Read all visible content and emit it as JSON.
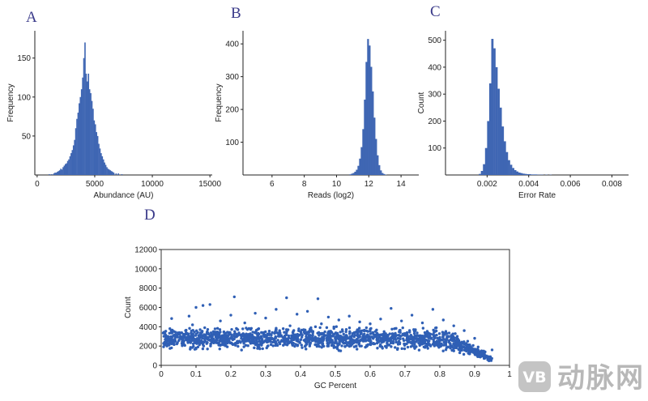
{
  "colors": {
    "bar": "#3f66b3",
    "point": "#2f5fb5",
    "axis": "#222222",
    "letter": "#3b3b8a",
    "watermark": "#b8b8b8"
  },
  "watermark": {
    "text": "动脉网",
    "icon": "vb-logo-icon",
    "logo_text": "VB"
  },
  "chart_data": [
    {
      "panel": "A",
      "type": "bar",
      "title": "",
      "xlabel": "Abundance (AU)",
      "ylabel": "Frequency",
      "xlim": [
        -200,
        15200
      ],
      "ylim": [
        0,
        185
      ],
      "xticks": [
        0,
        5000,
        10000,
        15000
      ],
      "yticks": [
        50,
        100,
        150
      ],
      "bin_width": 100,
      "bins": [
        [
          1000,
          1
        ],
        [
          1200,
          1
        ],
        [
          1400,
          2
        ],
        [
          1500,
          3
        ],
        [
          1600,
          3
        ],
        [
          1700,
          4
        ],
        [
          1800,
          5
        ],
        [
          1900,
          6
        ],
        [
          2000,
          8
        ],
        [
          2100,
          7
        ],
        [
          2200,
          10
        ],
        [
          2300,
          12
        ],
        [
          2400,
          14
        ],
        [
          2500,
          15
        ],
        [
          2600,
          18
        ],
        [
          2700,
          20
        ],
        [
          2800,
          24
        ],
        [
          2900,
          28
        ],
        [
          3000,
          32
        ],
        [
          3100,
          38
        ],
        [
          3200,
          45
        ],
        [
          3300,
          60
        ],
        [
          3400,
          72
        ],
        [
          3500,
          80
        ],
        [
          3600,
          92
        ],
        [
          3700,
          100
        ],
        [
          3800,
          110
        ],
        [
          3900,
          125
        ],
        [
          4000,
          150
        ],
        [
          4100,
          170
        ],
        [
          4200,
          130
        ],
        [
          4300,
          120
        ],
        [
          4400,
          130
        ],
        [
          4500,
          110
        ],
        [
          4600,
          105
        ],
        [
          4700,
          95
        ],
        [
          4800,
          85
        ],
        [
          4900,
          70
        ],
        [
          5000,
          65
        ],
        [
          5100,
          55
        ],
        [
          5200,
          50
        ],
        [
          5300,
          40
        ],
        [
          5400,
          34
        ],
        [
          5500,
          28
        ],
        [
          5600,
          24
        ],
        [
          5700,
          20
        ],
        [
          5800,
          16
        ],
        [
          5900,
          13
        ],
        [
          6000,
          10
        ],
        [
          6100,
          8
        ],
        [
          6200,
          7
        ],
        [
          6300,
          6
        ],
        [
          6400,
          5
        ],
        [
          6500,
          4
        ],
        [
          6600,
          3
        ],
        [
          6800,
          2
        ],
        [
          7000,
          2
        ],
        [
          7300,
          1
        ]
      ]
    },
    {
      "panel": "B",
      "type": "bar",
      "title": "",
      "xlabel": "Reads (log2)",
      "ylabel": "Frequency",
      "xlim": [
        4.2,
        15.1
      ],
      "ylim": [
        0,
        440
      ],
      "xticks": [
        6,
        8,
        10,
        12,
        14
      ],
      "yticks": [
        100,
        200,
        300,
        400
      ],
      "bin_width": 0.1,
      "bins": [
        [
          10.8,
          2
        ],
        [
          10.9,
          4
        ],
        [
          11.0,
          6
        ],
        [
          11.1,
          10
        ],
        [
          11.2,
          16
        ],
        [
          11.3,
          28
        ],
        [
          11.4,
          50
        ],
        [
          11.5,
          85
        ],
        [
          11.6,
          140
        ],
        [
          11.7,
          230
        ],
        [
          11.8,
          345
        ],
        [
          11.9,
          415
        ],
        [
          12.0,
          395
        ],
        [
          12.1,
          330
        ],
        [
          12.2,
          255
        ],
        [
          12.3,
          175
        ],
        [
          12.4,
          110
        ],
        [
          12.5,
          60
        ],
        [
          12.6,
          30
        ],
        [
          12.7,
          14
        ],
        [
          12.8,
          6
        ],
        [
          12.9,
          3
        ],
        [
          13.0,
          1
        ]
      ]
    },
    {
      "panel": "C",
      "type": "bar",
      "title": "",
      "xlabel": "Error Rate",
      "ylabel": "Count",
      "xlim": [
        0,
        0.0088
      ],
      "ylim": [
        0,
        535
      ],
      "xticks": [
        0.002,
        0.004,
        0.006,
        0.008
      ],
      "xtick_labels": [
        "0.002",
        "0.004",
        "0.006",
        "0.008"
      ],
      "yticks": [
        100,
        200,
        300,
        400,
        500
      ],
      "bin_width": 0.0001,
      "bins": [
        [
          0.0016,
          4
        ],
        [
          0.0017,
          15
        ],
        [
          0.0018,
          40
        ],
        [
          0.0019,
          100
        ],
        [
          0.002,
          200
        ],
        [
          0.0021,
          340
        ],
        [
          0.0022,
          505
        ],
        [
          0.0023,
          470
        ],
        [
          0.0024,
          400
        ],
        [
          0.0025,
          320
        ],
        [
          0.0026,
          250
        ],
        [
          0.0027,
          180
        ],
        [
          0.0028,
          125
        ],
        [
          0.0029,
          85
        ],
        [
          0.003,
          55
        ],
        [
          0.0031,
          38
        ],
        [
          0.0032,
          26
        ],
        [
          0.0033,
          18
        ],
        [
          0.0034,
          13
        ],
        [
          0.0035,
          9
        ],
        [
          0.0036,
          7
        ],
        [
          0.0037,
          5
        ],
        [
          0.0038,
          4
        ],
        [
          0.0039,
          3
        ],
        [
          0.004,
          3
        ],
        [
          0.0041,
          2
        ],
        [
          0.0042,
          2
        ],
        [
          0.0043,
          2
        ],
        [
          0.0044,
          1
        ],
        [
          0.0045,
          1
        ],
        [
          0.0046,
          1
        ],
        [
          0.0048,
          1
        ],
        [
          0.005,
          1
        ]
      ]
    },
    {
      "panel": "D",
      "type": "scatter",
      "title": "",
      "xlabel": "GC Percent",
      "ylabel": "Count",
      "xlim": [
        0,
        1
      ],
      "ylim": [
        0,
        12000
      ],
      "xticks": [
        0,
        0.1,
        0.2,
        0.3,
        0.4,
        0.5,
        0.6,
        0.7,
        0.8,
        0.9,
        1
      ],
      "xtick_labels": [
        "0",
        "0.1",
        "0.2",
        "0.3",
        "0.4",
        "0.5",
        "0.6",
        "0.7",
        "0.8",
        "0.9",
        "1"
      ],
      "yticks": [
        0,
        2000,
        4000,
        6000,
        8000,
        10000,
        12000
      ],
      "points": [
        [
          0.01,
          2400
        ],
        [
          0.02,
          2100
        ],
        [
          0.025,
          3800
        ],
        [
          0.03,
          4850
        ],
        [
          0.035,
          3100
        ],
        [
          0.04,
          2600
        ],
        [
          0.05,
          3300
        ],
        [
          0.06,
          2800
        ],
        [
          0.07,
          3600
        ],
        [
          0.08,
          5100
        ],
        [
          0.09,
          4200
        ],
        [
          0.095,
          2500
        ],
        [
          0.1,
          6000
        ],
        [
          0.105,
          3400
        ],
        [
          0.11,
          2200
        ],
        [
          0.12,
          6200
        ],
        [
          0.125,
          3900
        ],
        [
          0.13,
          2900
        ],
        [
          0.14,
          6300
        ],
        [
          0.15,
          3500
        ],
        [
          0.16,
          2600
        ],
        [
          0.17,
          4600
        ],
        [
          0.18,
          3100
        ],
        [
          0.19,
          2300
        ],
        [
          0.2,
          5200
        ],
        [
          0.21,
          7100
        ],
        [
          0.22,
          3700
        ],
        [
          0.23,
          2800
        ],
        [
          0.24,
          4400
        ],
        [
          0.25,
          3200
        ],
        [
          0.26,
          2500
        ],
        [
          0.27,
          5400
        ],
        [
          0.28,
          3800
        ],
        [
          0.29,
          2700
        ],
        [
          0.3,
          4900
        ],
        [
          0.31,
          3300
        ],
        [
          0.32,
          2400
        ],
        [
          0.33,
          5800
        ],
        [
          0.34,
          3600
        ],
        [
          0.35,
          2900
        ],
        [
          0.36,
          7000
        ],
        [
          0.37,
          4100
        ],
        [
          0.38,
          3000
        ],
        [
          0.39,
          5300
        ],
        [
          0.4,
          3500
        ],
        [
          0.41,
          2600
        ],
        [
          0.42,
          5600
        ],
        [
          0.43,
          3900
        ],
        [
          0.44,
          2800
        ],
        [
          0.45,
          6900
        ],
        [
          0.46,
          4300
        ],
        [
          0.47,
          3100
        ],
        [
          0.48,
          5000
        ],
        [
          0.49,
          3400
        ],
        [
          0.5,
          2500
        ],
        [
          0.51,
          4700
        ],
        [
          0.52,
          3700
        ],
        [
          0.53,
          2700
        ],
        [
          0.54,
          5100
        ],
        [
          0.55,
          3300
        ],
        [
          0.56,
          2400
        ],
        [
          0.57,
          4500
        ],
        [
          0.58,
          3600
        ],
        [
          0.59,
          2600
        ],
        [
          0.6,
          4300
        ],
        [
          0.61,
          3200
        ],
        [
          0.62,
          2300
        ],
        [
          0.63,
          4800
        ],
        [
          0.64,
          3500
        ],
        [
          0.65,
          2500
        ],
        [
          0.66,
          5900
        ],
        [
          0.67,
          3800
        ],
        [
          0.68,
          2800
        ],
        [
          0.69,
          4600
        ],
        [
          0.7,
          3300
        ],
        [
          0.71,
          2400
        ],
        [
          0.72,
          5200
        ],
        [
          0.73,
          3700
        ],
        [
          0.74,
          2700
        ],
        [
          0.75,
          4400
        ],
        [
          0.76,
          3100
        ],
        [
          0.77,
          2200
        ],
        [
          0.78,
          5800
        ],
        [
          0.79,
          3900
        ],
        [
          0.8,
          2900
        ],
        [
          0.81,
          4700
        ],
        [
          0.82,
          3300
        ],
        [
          0.83,
          2000
        ],
        [
          0.84,
          4100
        ],
        [
          0.85,
          3000
        ],
        [
          0.86,
          1800
        ],
        [
          0.87,
          3600
        ],
        [
          0.88,
          2500
        ],
        [
          0.89,
          1500
        ],
        [
          0.9,
          2800
        ],
        [
          0.91,
          1900
        ],
        [
          0.92,
          1000
        ],
        [
          0.93,
          1400
        ],
        [
          0.94,
          600
        ],
        [
          0.95,
          1600
        ]
      ]
    }
  ]
}
